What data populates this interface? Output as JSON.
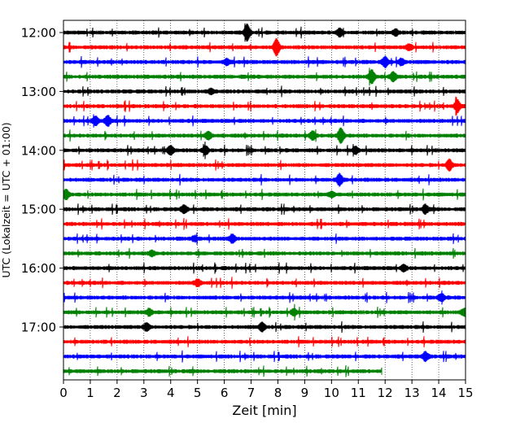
{
  "chart_data": {
    "type": "line",
    "xlabel": "Zeit  [min]",
    "ylabel": "UTC (Lokalzeit = UTC + 01:00)",
    "xlim": [
      0,
      15
    ],
    "x_ticks": [
      0,
      1,
      2,
      3,
      4,
      5,
      6,
      7,
      8,
      9,
      10,
      11,
      12,
      13,
      14,
      15
    ],
    "x_tick_labels": [
      "0",
      "1",
      "2",
      "3",
      "4",
      "5",
      "6",
      "7",
      "8",
      "9",
      "10",
      "11",
      "12",
      "13",
      "14",
      "15"
    ],
    "y_tick_labels": [
      {
        "trace_index": 0,
        "label": "12:00"
      },
      {
        "trace_index": 4,
        "label": "13:00"
      },
      {
        "trace_index": 8,
        "label": "14:00"
      },
      {
        "trace_index": 12,
        "label": "15:00"
      },
      {
        "trace_index": 16,
        "label": "16:00"
      },
      {
        "trace_index": 20,
        "label": "17:00"
      }
    ],
    "grid": "vertical dotted",
    "trace_minutes": 15,
    "color_cycle": [
      "#000000",
      "#ff0000",
      "#0000ff",
      "#008000"
    ],
    "traces": [
      {
        "start": "12:00",
        "end_min": 15,
        "color": "#000000",
        "events": [
          {
            "t": 6.85,
            "amp": 1.0
          },
          {
            "t": 10.3,
            "amp": 0.45
          },
          {
            "t": 12.4,
            "amp": 0.35
          }
        ]
      },
      {
        "start": "12:15",
        "end_min": 15,
        "color": "#ff0000",
        "events": [
          {
            "t": 7.95,
            "amp": 1.0
          },
          {
            "t": 12.9,
            "amp": 0.35
          }
        ]
      },
      {
        "start": "12:30",
        "end_min": 15,
        "color": "#0000ff",
        "events": [
          {
            "t": 6.1,
            "amp": 0.35
          },
          {
            "t": 12.0,
            "amp": 0.6
          },
          {
            "t": 12.6,
            "amp": 0.4
          }
        ]
      },
      {
        "start": "12:45",
        "end_min": 15,
        "color": "#008000",
        "events": [
          {
            "t": 11.5,
            "amp": 0.8
          },
          {
            "t": 12.3,
            "amp": 0.6
          }
        ]
      },
      {
        "start": "13:00",
        "end_min": 15,
        "color": "#000000",
        "events": [
          {
            "t": 5.5,
            "amp": 0.3
          }
        ]
      },
      {
        "start": "13:15",
        "end_min": 15,
        "color": "#ff0000",
        "events": [
          {
            "t": 14.7,
            "amp": 0.75
          }
        ]
      },
      {
        "start": "13:30",
        "end_min": 15,
        "color": "#0000ff",
        "events": [
          {
            "t": 1.2,
            "amp": 0.55
          },
          {
            "t": 1.65,
            "amp": 0.6
          }
        ]
      },
      {
        "start": "13:45",
        "end_min": 15,
        "color": "#008000",
        "events": [
          {
            "t": 5.4,
            "amp": 0.45
          },
          {
            "t": 9.3,
            "amp": 0.5
          },
          {
            "t": 10.35,
            "amp": 0.9
          }
        ]
      },
      {
        "start": "14:00",
        "end_min": 15,
        "color": "#000000",
        "events": [
          {
            "t": 4.0,
            "amp": 0.55
          },
          {
            "t": 5.3,
            "amp": 0.5
          },
          {
            "t": 10.9,
            "amp": 0.45
          }
        ]
      },
      {
        "start": "14:15",
        "end_min": 15,
        "color": "#ff0000",
        "events": [
          {
            "t": 14.4,
            "amp": 0.65
          }
        ]
      },
      {
        "start": "14:30",
        "end_min": 15,
        "color": "#0000ff",
        "events": [
          {
            "t": 10.3,
            "amp": 0.7
          }
        ]
      },
      {
        "start": "14:45",
        "end_min": 15,
        "color": "#008000",
        "events": [
          {
            "t": 0.1,
            "amp": 0.6
          },
          {
            "t": 10.0,
            "amp": 0.3
          }
        ]
      },
      {
        "start": "15:00",
        "end_min": 15,
        "color": "#000000",
        "events": [
          {
            "t": 4.5,
            "amp": 0.45
          },
          {
            "t": 13.5,
            "amp": 0.5
          }
        ]
      },
      {
        "start": "15:15",
        "end_min": 15,
        "color": "#ff0000",
        "events": []
      },
      {
        "start": "15:30",
        "end_min": 15,
        "color": "#0000ff",
        "events": [
          {
            "t": 6.3,
            "amp": 0.5
          },
          {
            "t": 4.9,
            "amp": 0.3
          }
        ]
      },
      {
        "start": "15:45",
        "end_min": 15,
        "color": "#008000",
        "events": [
          {
            "t": 3.3,
            "amp": 0.3
          }
        ]
      },
      {
        "start": "16:00",
        "end_min": 15,
        "color": "#000000",
        "events": [
          {
            "t": 12.7,
            "amp": 0.35
          }
        ]
      },
      {
        "start": "16:15",
        "end_min": 15,
        "color": "#ff0000",
        "events": [
          {
            "t": 5.0,
            "amp": 0.4
          }
        ]
      },
      {
        "start": "16:30",
        "end_min": 15,
        "color": "#0000ff",
        "events": [
          {
            "t": 14.1,
            "amp": 0.45
          }
        ]
      },
      {
        "start": "16:45",
        "end_min": 15,
        "color": "#008000",
        "events": [
          {
            "t": 3.2,
            "amp": 0.4
          },
          {
            "t": 8.6,
            "amp": 0.35
          },
          {
            "t": 14.95,
            "amp": 0.4
          }
        ]
      },
      {
        "start": "17:00",
        "end_min": 15,
        "color": "#000000",
        "events": [
          {
            "t": 3.1,
            "amp": 0.45
          },
          {
            "t": 7.4,
            "amp": 0.5
          }
        ]
      },
      {
        "start": "17:15",
        "end_min": 15,
        "color": "#ff0000",
        "events": []
      },
      {
        "start": "17:30",
        "end_min": 15,
        "color": "#0000ff",
        "events": [
          {
            "t": 13.5,
            "amp": 0.5
          }
        ]
      },
      {
        "start": "17:45",
        "end_min": 11.9,
        "color": "#008000",
        "events": []
      }
    ]
  }
}
